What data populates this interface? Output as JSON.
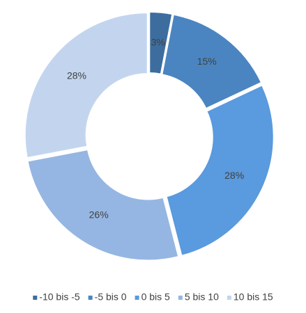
{
  "chart_data": {
    "type": "donut",
    "categories": [
      "-10 bis -5",
      "-5 bis 0",
      "0 bis 5",
      "5 bis 10",
      "10 bis 15"
    ],
    "values": [
      3,
      15,
      28,
      26,
      28
    ],
    "value_labels": [
      "3%",
      "15%",
      "28%",
      "26%",
      "28%"
    ],
    "colors": [
      "#3d6d9f",
      "#4a85c1",
      "#5a9ade",
      "#95b6e2",
      "#c3d5ee"
    ],
    "legend": "bottom"
  }
}
